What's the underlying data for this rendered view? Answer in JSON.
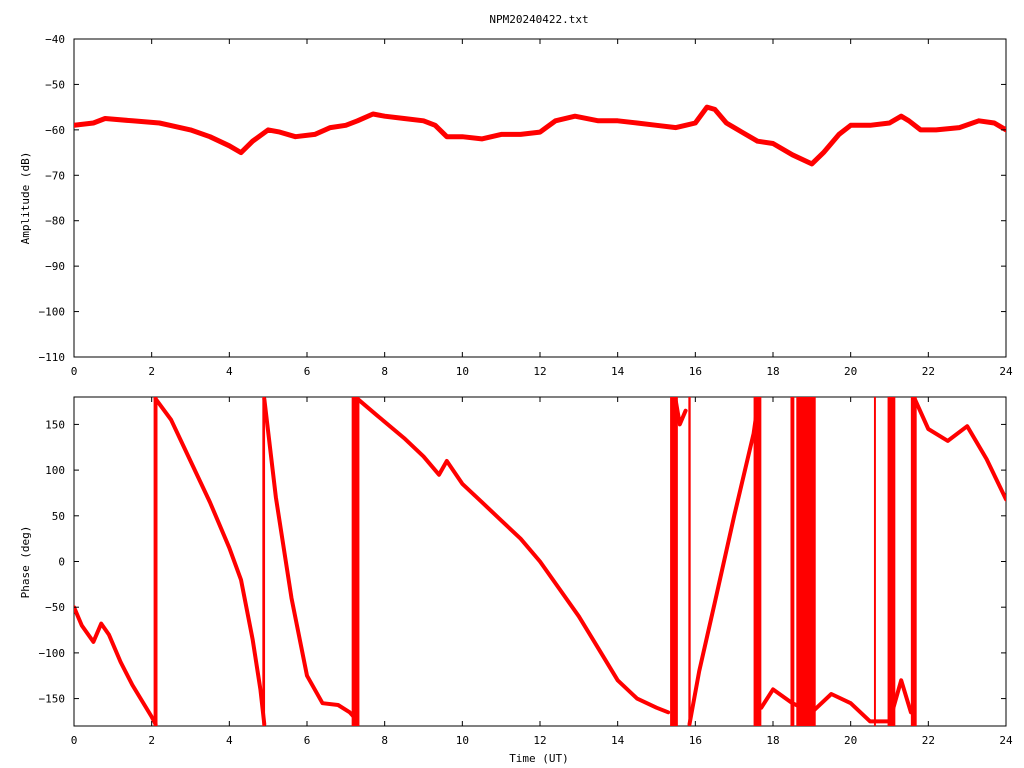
{
  "title": "NPM20240422.txt",
  "chart_data": [
    {
      "type": "line",
      "ylabel": "Amplitude (dB)",
      "xlabel": "",
      "xlim": [
        0,
        24
      ],
      "ylim": [
        -110,
        -40
      ],
      "xticks": [
        0,
        2,
        4,
        6,
        8,
        10,
        12,
        14,
        16,
        18,
        20,
        22,
        24
      ],
      "yticks": [
        -110,
        -100,
        -90,
        -80,
        -70,
        -60,
        -50,
        -40
      ],
      "ytick_labels": [
        "−110",
        "−100",
        "−90",
        "−80",
        "−70",
        "−60",
        "−50",
        "−40"
      ],
      "grid": false,
      "color": "#ff0000",
      "series": [
        {
          "x": [
            0,
            0.5,
            0.8,
            1.5,
            2.2,
            3.0,
            3.5,
            4.0,
            4.3,
            4.6,
            5.0,
            5.3,
            5.7,
            6.2,
            6.6,
            7.0,
            7.3,
            7.7,
            8.0,
            8.5,
            9.0,
            9.3,
            9.6,
            10.0,
            10.5,
            11.0,
            11.5,
            12.0,
            12.4,
            12.9,
            13.5,
            14.0,
            14.5,
            15.0,
            15.5,
            16.0,
            16.3,
            16.5,
            16.8,
            17.2,
            17.6,
            18.0,
            18.5,
            19.0,
            19.3,
            19.7,
            20.0,
            20.5,
            21.0,
            21.3,
            21.5,
            21.8,
            22.2,
            22.8,
            23.3,
            23.7,
            24.0
          ],
          "y": [
            -59,
            -58.5,
            -57.5,
            -58,
            -58.5,
            -60,
            -61.5,
            -63.5,
            -65,
            -62.5,
            -60,
            -60.5,
            -61.5,
            -61,
            -59.5,
            -59,
            -58,
            -56.5,
            -57,
            -57.5,
            -58,
            -59,
            -61.5,
            -61.5,
            -62,
            -61,
            -61,
            -60.5,
            -58,
            -57,
            -58,
            -58,
            -58.5,
            -59,
            -59.5,
            -58.5,
            -55,
            -55.5,
            -58.5,
            -60.5,
            -62.5,
            -63,
            -65.5,
            -67.5,
            -65,
            -61,
            -59,
            -59,
            -58.5,
            -57,
            -58,
            -60,
            -60,
            -59.5,
            -58,
            -58.5,
            -60
          ]
        }
      ]
    },
    {
      "type": "line",
      "ylabel": "Phase (deg)",
      "xlabel": "Time (UT)",
      "xlim": [
        0,
        24
      ],
      "ylim": [
        -180,
        180
      ],
      "xticks": [
        0,
        2,
        4,
        6,
        8,
        10,
        12,
        14,
        16,
        18,
        20,
        22,
        24
      ],
      "yticks": [
        -150,
        -100,
        -50,
        0,
        50,
        100,
        150
      ],
      "ytick_labels": [
        "−150",
        "−100",
        "−50",
        "0",
        "50",
        "100",
        "150"
      ],
      "grid": false,
      "color": "#ff0000",
      "series": [
        {
          "x": [
            0,
            0.2,
            0.5,
            0.7,
            0.9,
            1.2,
            1.5,
            2.0,
            2.1
          ],
          "y": [
            -50,
            -70,
            -88,
            -68,
            -80,
            -110,
            -135,
            -170,
            -178
          ]
        },
        {
          "x": [
            2.1,
            2.5,
            3.0,
            3.5,
            4.0,
            4.3,
            4.6,
            4.8,
            4.9
          ],
          "y": [
            178,
            155,
            110,
            65,
            15,
            -20,
            -85,
            -140,
            -178
          ]
        },
        {
          "x": [
            4.9,
            5.2,
            5.6,
            6.0,
            6.4,
            6.8,
            7.1,
            7.25
          ],
          "y": [
            178,
            70,
            -40,
            -125,
            -155,
            -157,
            -165,
            -172
          ]
        },
        {
          "x": [
            7.3,
            7.8,
            8.5,
            9.0,
            9.4,
            9.6,
            10.0,
            10.5,
            11.0,
            11.5,
            12.0,
            12.5,
            13.0,
            13.5,
            14.0,
            14.5,
            15.0,
            15.3
          ],
          "y": [
            178,
            160,
            135,
            115,
            95,
            110,
            85,
            65,
            45,
            25,
            0,
            -30,
            -60,
            -95,
            -130,
            -150,
            -160,
            -165
          ]
        },
        {
          "x": [
            15.5,
            15.6,
            15.75
          ],
          "y": [
            175,
            150,
            165
          ]
        },
        {
          "x": [
            15.85,
            16.1,
            16.5,
            17.0,
            17.5,
            17.6
          ],
          "y": [
            -178,
            -120,
            -45,
            50,
            140,
            170
          ]
        },
        {
          "x": [
            17.7,
            18.0,
            18.5,
            19.0,
            19.5,
            20.0,
            20.5,
            21.0,
            21.3,
            21.55
          ],
          "y": [
            -160,
            -140,
            -155,
            -165,
            -145,
            -155,
            -175,
            -175,
            -130,
            -165
          ]
        },
        {
          "x": [
            21.65,
            22.0,
            22.5,
            23.0,
            23.5,
            24.0
          ],
          "y": [
            178,
            145,
            132,
            148,
            112,
            68
          ]
        }
      ],
      "wrap_bands": [
        [
          2.05,
          2.15
        ],
        [
          4.85,
          4.92
        ],
        [
          7.15,
          7.35
        ],
        [
          15.35,
          15.55
        ],
        [
          15.82,
          15.88
        ],
        [
          17.5,
          17.7
        ],
        [
          18.45,
          18.55
        ],
        [
          18.6,
          19.1
        ],
        [
          20.6,
          20.65
        ],
        [
          20.95,
          21.15
        ],
        [
          21.55,
          21.7
        ]
      ]
    }
  ]
}
